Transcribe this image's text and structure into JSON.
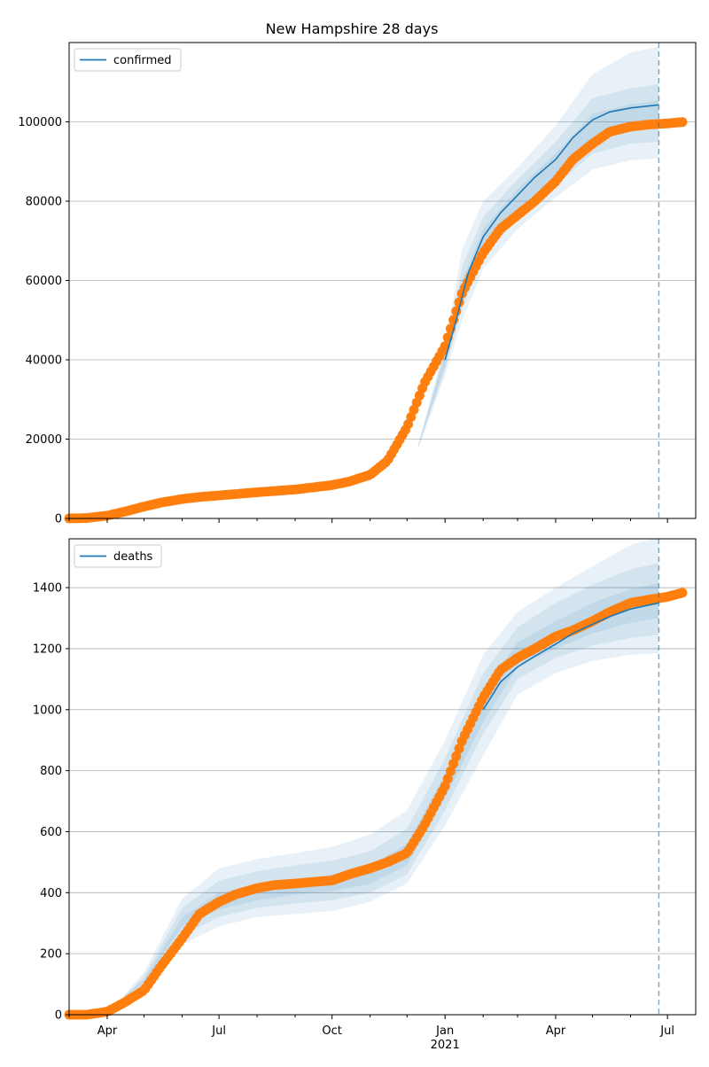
{
  "figure": {
    "title": "New Hampshire 28 days"
  },
  "chart_data": [
    {
      "type": "line",
      "legend": {
        "label": "confirmed",
        "placement": "top-left"
      },
      "grid": "horizontal",
      "ylim": [
        0,
        120000
      ],
      "yticks": [
        0,
        20000,
        40000,
        60000,
        80000,
        100000
      ],
      "ytick_labels": [
        "0",
        "20000",
        "40000",
        "60000",
        "80000",
        "100000"
      ],
      "colors": {
        "model": "#1f77b4",
        "band": "#1f77b4",
        "observed": "#ff7f0e"
      },
      "forecast_date": "2021-06-24",
      "model_series": {
        "name": "confirmed",
        "x": [
          "2021-01-01",
          "2021-01-10",
          "2021-01-20",
          "2021-02-01",
          "2021-02-15",
          "2021-03-01",
          "2021-03-15",
          "2021-04-01",
          "2021-04-15",
          "2021-05-01",
          "2021-05-15",
          "2021-06-01",
          "2021-06-24"
        ],
        "y": [
          40000,
          50000,
          62000,
          71000,
          77000,
          81500,
          86000,
          90500,
          96000,
          100500,
          102500,
          103500,
          104300
        ]
      },
      "bands": [
        {
          "x": [
            "2020-12-10",
            "2021-01-01",
            "2021-01-15",
            "2021-02-01",
            "2021-03-01",
            "2021-04-01",
            "2021-05-01",
            "2021-06-01",
            "2021-06-24"
          ],
          "lower": [
            17500,
            36000,
            50000,
            63000,
            73000,
            81000,
            88000,
            90300,
            90800
          ],
          "upper": [
            18500,
            44000,
            68000,
            80000,
            88500,
            99000,
            112000,
            117500,
            119000
          ]
        },
        {
          "x": [
            "2020-12-10",
            "2021-01-01",
            "2021-01-15",
            "2021-02-01",
            "2021-03-01",
            "2021-04-01",
            "2021-05-01",
            "2021-06-01",
            "2021-06-24"
          ],
          "lower": [
            17800,
            37500,
            53000,
            66000,
            75500,
            84000,
            92000,
            94500,
            95000
          ],
          "upper": [
            18200,
            42500,
            63500,
            76000,
            85500,
            95000,
            106000,
            108500,
            109500
          ]
        },
        {
          "x": [
            "2020-12-10",
            "2021-01-01",
            "2021-01-15",
            "2021-02-01",
            "2021-03-01",
            "2021-04-01",
            "2021-05-01",
            "2021-06-01",
            "2021-06-24"
          ],
          "lower": [
            17900,
            38500,
            56000,
            68500,
            78000,
            86500,
            96000,
            99500,
            100000
          ],
          "upper": [
            18100,
            41500,
            60000,
            73000,
            83000,
            92000,
            102000,
            104500,
            105300
          ]
        }
      ],
      "observed_series": {
        "name": "observed",
        "x": [
          "2020-03-01",
          "2020-03-15",
          "2020-04-01",
          "2020-04-15",
          "2020-05-01",
          "2020-05-15",
          "2020-06-01",
          "2020-06-15",
          "2020-07-01",
          "2020-08-01",
          "2020-09-01",
          "2020-10-01",
          "2020-10-15",
          "2020-11-01",
          "2020-11-15",
          "2020-12-01",
          "2020-12-15",
          "2021-01-01",
          "2021-01-15",
          "2021-02-01",
          "2021-02-15",
          "2021-03-01",
          "2021-03-15",
          "2021-04-01",
          "2021-04-15",
          "2021-05-01",
          "2021-05-15",
          "2021-06-01",
          "2021-06-15",
          "2021-07-01",
          "2021-07-15"
        ],
        "y": [
          0,
          100,
          700,
          1700,
          3000,
          4000,
          4900,
          5400,
          5800,
          6600,
          7300,
          8400,
          9300,
          11000,
          14500,
          23000,
          34000,
          43500,
          57000,
          67000,
          73000,
          76500,
          80000,
          85000,
          90500,
          94500,
          97500,
          98800,
          99300,
          99600,
          100000
        ]
      }
    },
    {
      "type": "line",
      "legend": {
        "label": "deaths",
        "placement": "top-left"
      },
      "grid": "horizontal",
      "ylim": [
        0,
        1560
      ],
      "yticks": [
        0,
        200,
        400,
        600,
        800,
        1000,
        1200,
        1400
      ],
      "ytick_labels": [
        "0",
        "200",
        "400",
        "600",
        "800",
        "1000",
        "1200",
        "1400"
      ],
      "colors": {
        "model": "#1f77b4",
        "band": "#1f77b4",
        "observed": "#ff7f0e"
      },
      "forecast_date": "2021-06-24",
      "model_series": {
        "name": "deaths",
        "x": [
          "2021-02-01",
          "2021-02-15",
          "2021-03-01",
          "2021-03-15",
          "2021-04-01",
          "2021-04-15",
          "2021-05-01",
          "2021-05-15",
          "2021-06-01",
          "2021-06-24"
        ],
        "y": [
          1000,
          1090,
          1140,
          1175,
          1215,
          1250,
          1280,
          1305,
          1330,
          1350
        ]
      },
      "bands": [
        {
          "x": [
            "2020-04-15",
            "2020-05-01",
            "2020-06-01",
            "2020-07-01",
            "2020-08-01",
            "2020-09-01",
            "2020-10-01",
            "2020-11-01",
            "2020-12-01",
            "2021-01-01",
            "2021-02-01",
            "2021-03-01",
            "2021-04-01",
            "2021-05-01",
            "2021-06-01",
            "2021-06-24"
          ],
          "lower": [
            55,
            80,
            230,
            290,
            320,
            330,
            340,
            370,
            430,
            620,
            850,
            1050,
            1120,
            1160,
            1180,
            1185
          ],
          "upper": [
            65,
            140,
            380,
            480,
            510,
            530,
            550,
            590,
            670,
            900,
            1180,
            1320,
            1400,
            1470,
            1540,
            1565
          ]
        },
        {
          "x": [
            "2020-04-15",
            "2020-05-01",
            "2020-06-01",
            "2020-07-01",
            "2020-08-01",
            "2020-09-01",
            "2020-10-01",
            "2020-11-01",
            "2020-12-01",
            "2021-01-01",
            "2021-02-01",
            "2021-03-01",
            "2021-04-01",
            "2021-05-01",
            "2021-06-01",
            "2021-06-24"
          ],
          "lower": [
            58,
            95,
            260,
            320,
            350,
            365,
            375,
            400,
            460,
            670,
            920,
            1100,
            1170,
            1210,
            1235,
            1245
          ],
          "upper": [
            62,
            125,
            350,
            440,
            470,
            490,
            505,
            535,
            610,
            840,
            1120,
            1270,
            1350,
            1410,
            1460,
            1480
          ]
        },
        {
          "x": [
            "2020-04-15",
            "2020-05-01",
            "2020-06-01",
            "2020-07-01",
            "2020-08-01",
            "2020-09-01",
            "2020-10-01",
            "2020-11-01",
            "2020-12-01",
            "2021-01-01",
            "2021-02-01",
            "2021-03-01",
            "2021-04-01",
            "2021-05-01",
            "2021-06-01",
            "2021-06-24"
          ],
          "lower": [
            59,
            105,
            290,
            345,
            375,
            395,
            405,
            430,
            490,
            710,
            960,
            1140,
            1200,
            1250,
            1285,
            1300
          ],
          "upper": [
            61,
            115,
            320,
            400,
            425,
            440,
            460,
            490,
            560,
            790,
            1060,
            1220,
            1290,
            1350,
            1395,
            1415
          ]
        }
      ],
      "observed_series": {
        "name": "observed",
        "x": [
          "2020-03-01",
          "2020-03-15",
          "2020-04-01",
          "2020-04-15",
          "2020-05-01",
          "2020-05-15",
          "2020-06-01",
          "2020-06-15",
          "2020-07-01",
          "2020-07-15",
          "2020-08-01",
          "2020-08-15",
          "2020-09-01",
          "2020-09-15",
          "2020-10-01",
          "2020-10-15",
          "2020-11-01",
          "2020-11-15",
          "2020-12-01",
          "2020-12-15",
          "2021-01-01",
          "2021-01-15",
          "2021-02-01",
          "2021-02-15",
          "2021-03-01",
          "2021-03-15",
          "2021-04-01",
          "2021-04-15",
          "2021-05-01",
          "2021-05-15",
          "2021-06-01",
          "2021-06-15",
          "2021-07-01",
          "2021-07-15"
        ],
        "y": [
          0,
          0,
          10,
          40,
          80,
          160,
          250,
          330,
          370,
          395,
          415,
          425,
          430,
          435,
          440,
          460,
          480,
          500,
          530,
          620,
          750,
          900,
          1040,
          1130,
          1170,
          1200,
          1240,
          1260,
          1290,
          1320,
          1350,
          1360,
          1370,
          1385
        ]
      }
    }
  ],
  "x_axis": {
    "range": [
      "2020-03-01",
      "2021-07-24"
    ],
    "ticks": [
      {
        "date": "2020-04-01",
        "label": "Apr"
      },
      {
        "date": "2020-07-01",
        "label": "Jul"
      },
      {
        "date": "2020-10-01",
        "label": "Oct"
      },
      {
        "date": "2021-01-01",
        "label": "Jan"
      },
      {
        "date": "2021-04-01",
        "label": "Apr"
      },
      {
        "date": "2021-07-01",
        "label": "Jul"
      }
    ],
    "year_label": "2021"
  }
}
